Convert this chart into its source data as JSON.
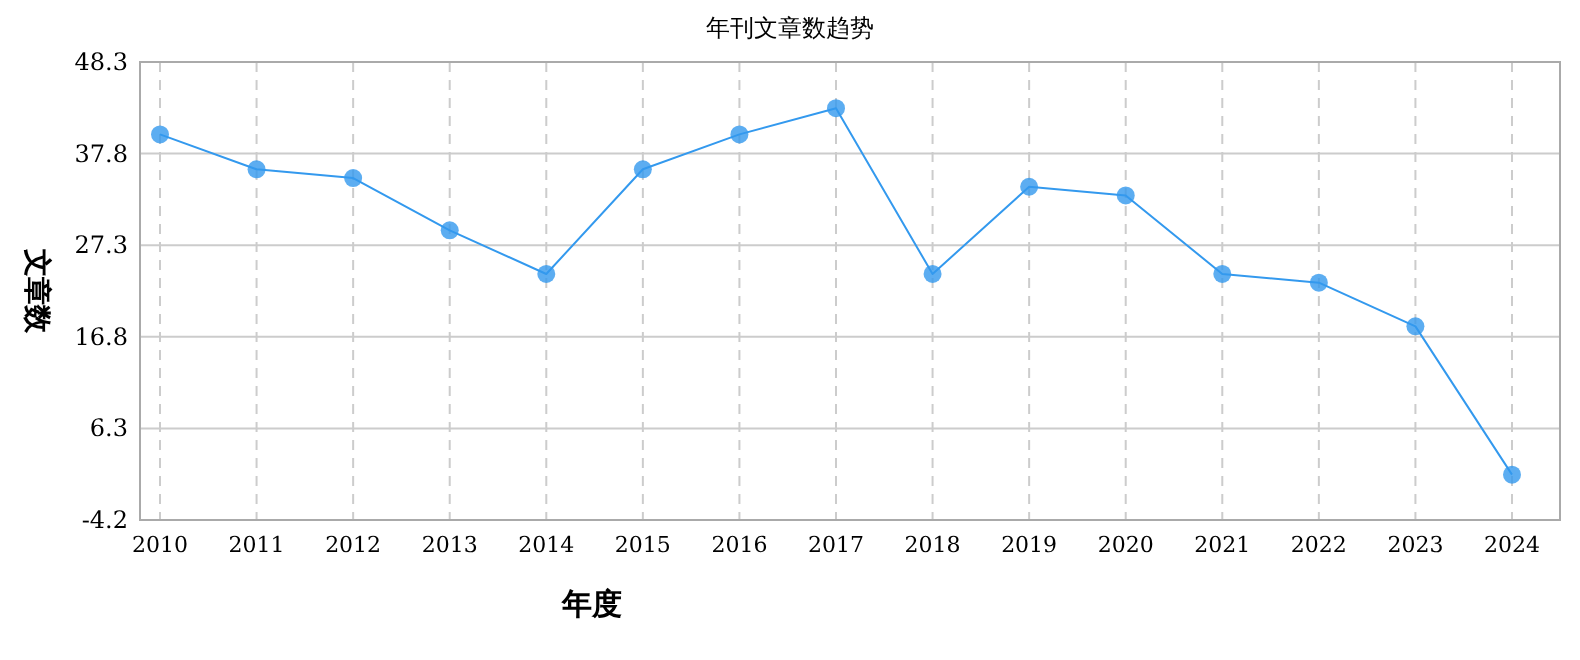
{
  "chart_data": {
    "type": "line",
    "title": "年刊文章数趋势",
    "xlabel": "年度",
    "ylabel": "文章数",
    "categories": [
      "2010",
      "2011",
      "2012",
      "2013",
      "2014",
      "2015",
      "2016",
      "2017",
      "2018",
      "2019",
      "2020",
      "2021",
      "2022",
      "2023",
      "2024"
    ],
    "series": [
      {
        "color": "#3399ee",
        "values": [
          40,
          36,
          35,
          29,
          24,
          36,
          40,
          43,
          24,
          34,
          33,
          24,
          23,
          18,
          1
        ]
      }
    ],
    "ylim": [
      -4.2,
      48.3
    ],
    "yticks": [
      -4.2,
      6.3,
      16.8,
      27.3,
      37.8,
      48.3
    ],
    "grid": true,
    "marker": "circle",
    "line_style": "solid"
  }
}
